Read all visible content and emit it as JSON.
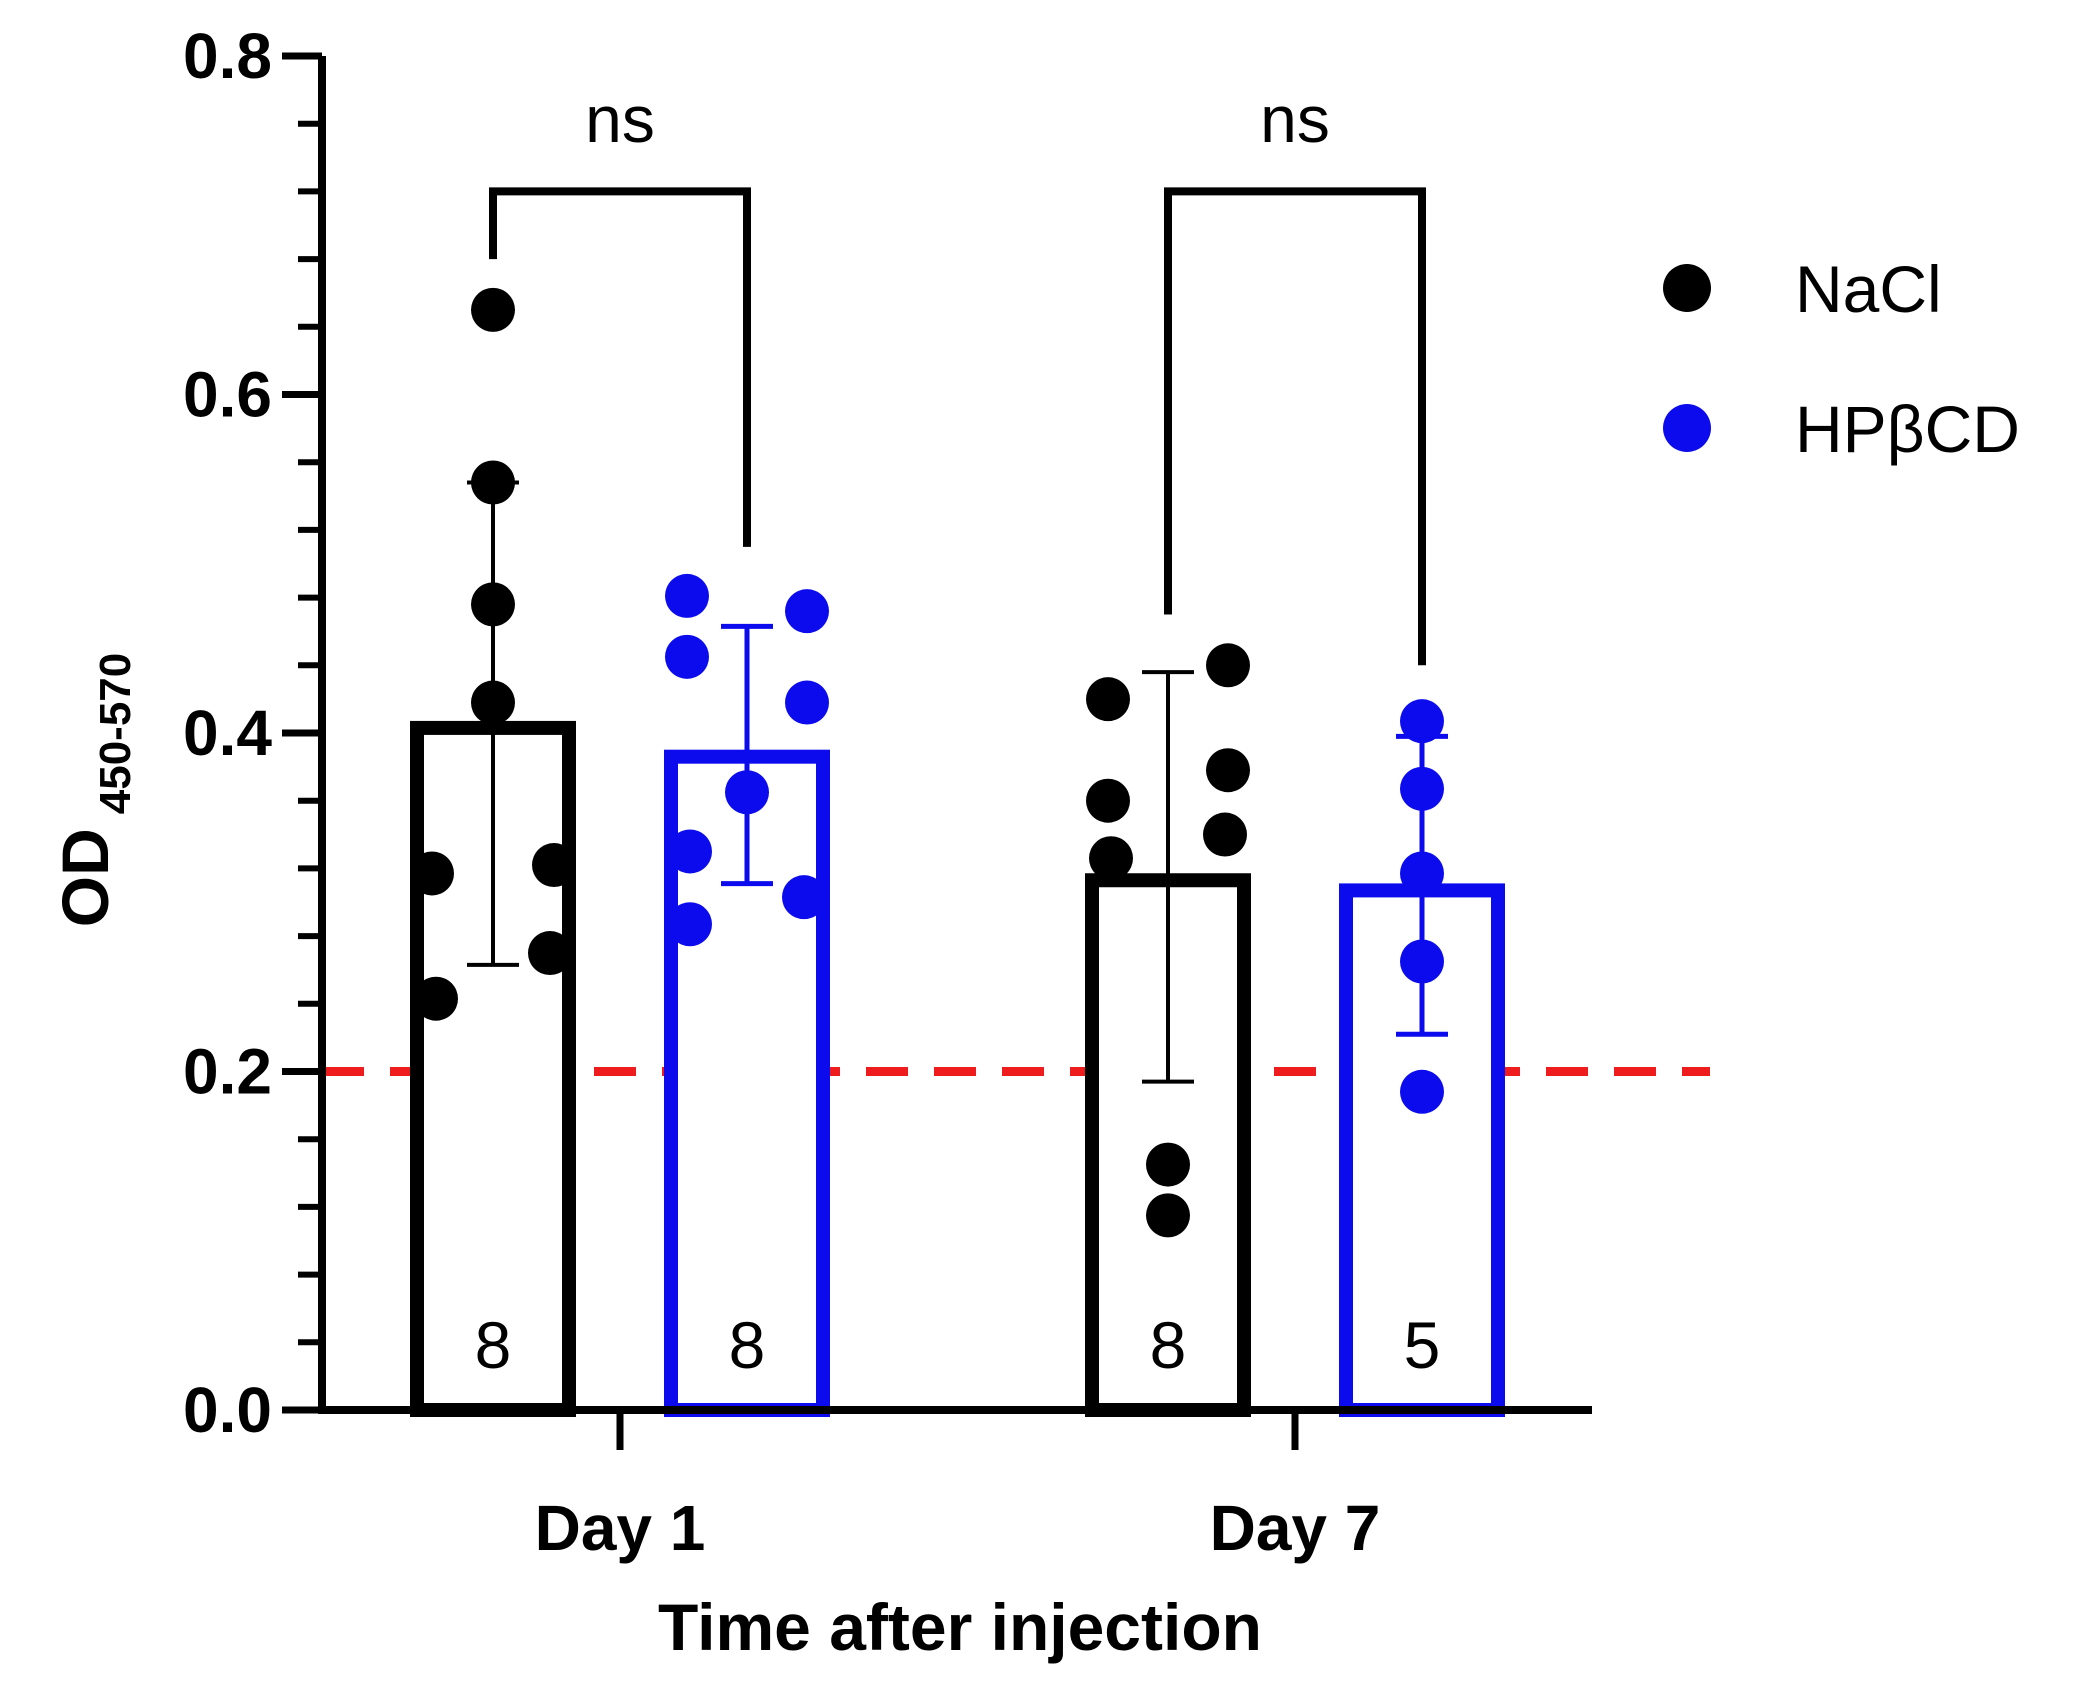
{
  "chart_data": {
    "type": "bar",
    "ylabel": "OD",
    "ylabel_subscript": "450-570",
    "xlabel": "Time after injection",
    "ylim": [
      0.0,
      0.8
    ],
    "yticks": [
      "0.0",
      "0.2",
      "0.4",
      "0.6",
      "0.8"
    ],
    "categories": [
      "Day 1",
      "Day 7"
    ],
    "threshold": {
      "value": 0.2,
      "color": "#ee1c1c",
      "style": "dashed"
    },
    "series": [
      {
        "name": "NaCl",
        "color": "#000000",
        "means": [
          0.403,
          0.313
        ],
        "sd_upper": [
          0.548,
          0.436
        ],
        "sd_lower": [
          0.263,
          0.194
        ],
        "n": [
          "8",
          "8"
        ],
        "points": [
          [
            0.65,
            0.548,
            0.476,
            0.418,
            0.317,
            0.322,
            0.27,
            0.243
          ],
          [
            0.42,
            0.44,
            0.36,
            0.378,
            0.326,
            0.34,
            0.145,
            0.115
          ]
        ]
      },
      {
        "name": "HPβCD",
        "color": "#0b0bee",
        "means": [
          0.386,
          0.307
        ],
        "sd_upper": [
          0.463,
          0.398
        ],
        "sd_lower": [
          0.311,
          0.222
        ],
        "n": [
          "8",
          "5"
        ],
        "points": [
          [
            0.481,
            0.472,
            0.445,
            0.418,
            0.365,
            0.33,
            0.287,
            0.303
          ],
          [
            0.407,
            0.367,
            0.317,
            0.265,
            0.188
          ]
        ]
      }
    ],
    "comparisons": [
      {
        "category": "Day 1",
        "label": "ns",
        "left_end": 0.68,
        "right_end": 0.51,
        "top": 0.72
      },
      {
        "category": "Day 7",
        "label": "ns",
        "left_end": 0.47,
        "right_end": 0.44,
        "top": 0.72
      }
    ],
    "legend": {
      "position": "right"
    }
  }
}
